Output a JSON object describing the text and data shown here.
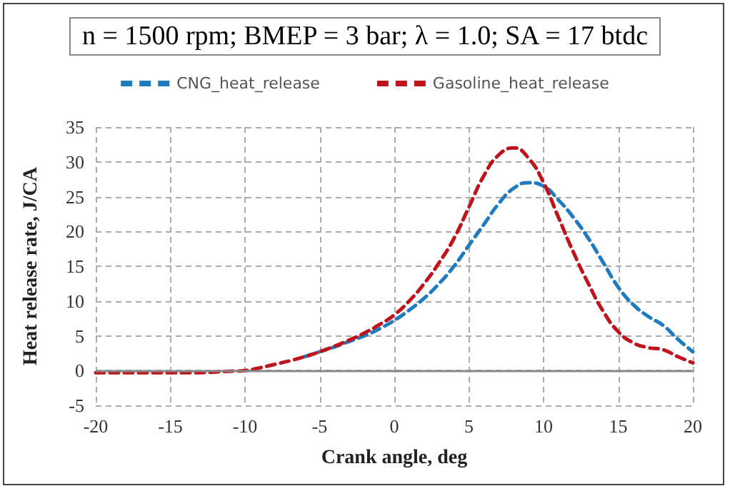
{
  "chart_data": {
    "type": "line",
    "title": "n = 1500 rpm; BMEP = 3 bar; λ = 1.0; SA = 17 btdc",
    "xlabel": "Crank angle, deg",
    "ylabel": "Heat release rate, J/CA",
    "x": [
      -20,
      -19,
      -18,
      -17,
      -16,
      -15,
      -14,
      -13,
      -12,
      -11,
      -10,
      -9,
      -8,
      -7,
      -6,
      -5,
      -4,
      -3,
      -2,
      -1,
      0,
      1,
      2,
      3,
      4,
      5,
      6,
      7,
      8,
      9,
      10,
      11,
      12,
      13,
      14,
      15,
      16,
      17,
      18,
      19,
      20
    ],
    "series": [
      {
        "name": "CNG_heat_release",
        "color": "#1f7bc0",
        "values": [
          null,
          null,
          null,
          null,
          null,
          null,
          null,
          null,
          null,
          null,
          null,
          null,
          null,
          null,
          2.0,
          2.7,
          3.4,
          4.2,
          5.0,
          6.0,
          7.2,
          8.7,
          10.4,
          12.5,
          15,
          18,
          21,
          24,
          26.2,
          27,
          26.5,
          24.5,
          22,
          19,
          15.5,
          12,
          9.5,
          7.8,
          6.5,
          4.5,
          2.7
        ]
      },
      {
        "name": "Gasoline_heat_release",
        "color": "#c0141c",
        "values": [
          -0.3,
          -0.3,
          -0.3,
          -0.3,
          -0.3,
          -0.3,
          -0.3,
          -0.3,
          -0.2,
          -0.1,
          0,
          0.4,
          0.9,
          1.4,
          2.0,
          2.7,
          3.5,
          4.4,
          5.4,
          6.6,
          8,
          10,
          12.5,
          15.5,
          19,
          23.5,
          28,
          31,
          32,
          30.5,
          27,
          22,
          17,
          12.5,
          8.5,
          5.6,
          4,
          3.3,
          3,
          2,
          1.1
        ]
      }
    ],
    "xlim": [
      -20,
      20
    ],
    "xticks": [
      -20,
      -15,
      -10,
      -5,
      0,
      5,
      10,
      15,
      20
    ],
    "ylim": [
      -5,
      35
    ],
    "yticks": [
      -5,
      0,
      5,
      10,
      15,
      20,
      25,
      30,
      35
    ],
    "grid": true,
    "legend": "top",
    "marker": "none",
    "line_style": "dashed"
  }
}
